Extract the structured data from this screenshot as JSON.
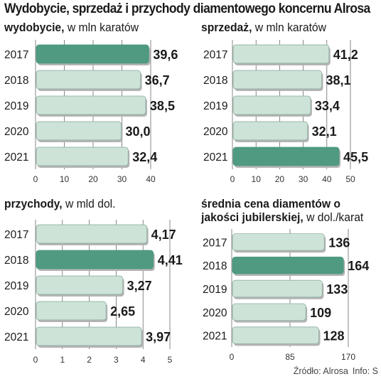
{
  "title": "Wydobycie, sprzedaż i przychody diamentowego koncernu Alrosa",
  "source": {
    "label": "Źródło: Alrosa",
    "credit": "Info: S"
  },
  "colors": {
    "bar": "#cde3d8",
    "highlight": "#4f9a80",
    "bar_stroke": "#8fb0a2",
    "shadow": "#b4b4b4",
    "grid": "#555555"
  },
  "chart_data": [
    {
      "id": "wydobycie",
      "type": "bar",
      "orientation": "horizontal",
      "title_bold": "wydobycie,",
      "title_rest": " w mln karatów",
      "categories": [
        "2017",
        "2018",
        "2019",
        "2020",
        "2021"
      ],
      "values": [
        39.6,
        36.7,
        38.5,
        30.0,
        32.4
      ],
      "value_labels": [
        "39,6",
        "36,7",
        "38,5",
        "30,0",
        "32,4"
      ],
      "highlight_index": 0,
      "xlim": [
        0,
        40
      ],
      "ticks": [
        0,
        10,
        20,
        30,
        40
      ],
      "tick_labels": [
        "0",
        "10",
        "20",
        "30",
        "40"
      ]
    },
    {
      "id": "sprzedaz",
      "type": "bar",
      "orientation": "horizontal",
      "title_bold": "sprzedaż,",
      "title_rest": " w mln karatów",
      "categories": [
        "2017",
        "2018",
        "2019",
        "2020",
        "2021"
      ],
      "values": [
        41.2,
        38.1,
        33.4,
        32.1,
        45.5
      ],
      "value_labels": [
        "41,2",
        "38,1",
        "33,4",
        "32,1",
        "45,5"
      ],
      "highlight_index": 4,
      "xlim": [
        0,
        50
      ],
      "ticks": [
        0,
        10,
        20,
        30,
        40,
        50
      ],
      "tick_labels": [
        "0",
        "10",
        "20",
        "30",
        "40",
        "50"
      ]
    },
    {
      "id": "przychody",
      "type": "bar",
      "orientation": "horizontal",
      "title_bold": "przychody,",
      "title_rest": " w mld dol.",
      "categories": [
        "2017",
        "2018",
        "2019",
        "2020",
        "2021"
      ],
      "values": [
        4.17,
        4.41,
        3.27,
        2.65,
        3.97
      ],
      "value_labels": [
        "4,17",
        "4,41",
        "3,27",
        "2,65",
        "3,97"
      ],
      "highlight_index": 1,
      "xlim": [
        0,
        5
      ],
      "ticks": [
        0,
        1,
        2,
        3,
        4,
        5
      ],
      "tick_labels": [
        "0",
        "1",
        "2",
        "3",
        "4",
        "5"
      ]
    },
    {
      "id": "srednia-cena",
      "type": "bar",
      "orientation": "horizontal",
      "title_bold": "średnia cena diamentów o jakości jubilerskiej,",
      "title_rest": " w dol./karat",
      "categories": [
        "2017",
        "2018",
        "2019",
        "2020",
        "2021"
      ],
      "values": [
        136,
        164,
        133,
        109,
        128
      ],
      "value_labels": [
        "136",
        "164",
        "133",
        "109",
        "128"
      ],
      "highlight_index": 1,
      "xlim": [
        0,
        170
      ],
      "ticks": [
        0,
        85,
        170
      ],
      "tick_labels": [
        "0",
        "85",
        "170"
      ]
    }
  ]
}
